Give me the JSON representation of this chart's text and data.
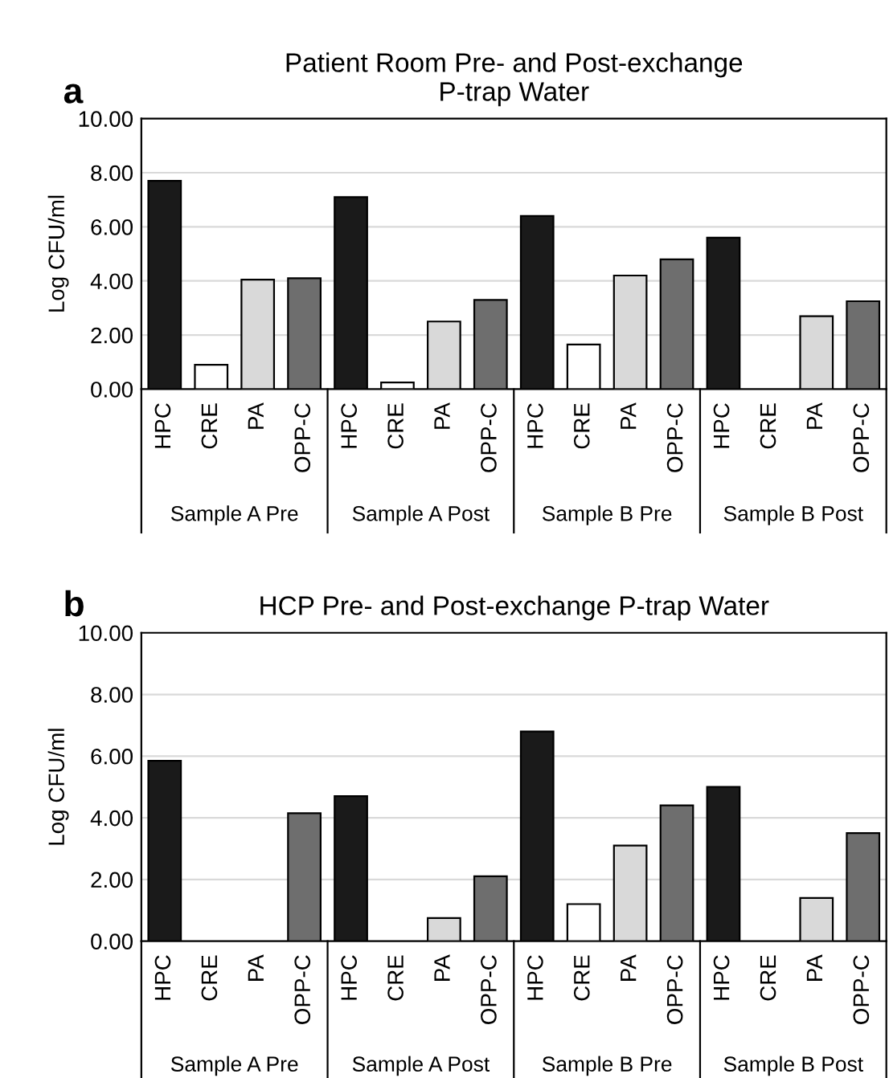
{
  "chart_data": [
    {
      "type": "bar",
      "title": "Patient Room Pre- and Post-exchange\nP-trap Water",
      "ylabel": "Log CFU/ml",
      "annotations": [
        "a",
        "Sample A Pre",
        "Sample A Post",
        "Sample B Pre",
        "Sample B Post"
      ],
      "categories": [
        "HPC",
        "CRE",
        "PA",
        "OPP-C",
        "HPC",
        "CRE",
        "PA",
        "OPP-C",
        "HPC",
        "CRE",
        "PA",
        "OPP-C",
        "HPC",
        "CRE",
        "PA",
        "OPP-C"
      ],
      "values": [
        7.7,
        0.9,
        4.05,
        4.1,
        7.1,
        0.25,
        2.5,
        3.3,
        6.4,
        1.65,
        4.2,
        4.8,
        5.6,
        null,
        2.7,
        3.25
      ],
      "colors": [
        "#1a1a1a",
        "#ffffff",
        "#d9d9d9",
        "#6e6e6e",
        "#1a1a1a",
        "#ffffff",
        "#d9d9d9",
        "#6e6e6e",
        "#1a1a1a",
        "#ffffff",
        "#d9d9d9",
        "#6e6e6e",
        "#1a1a1a",
        "#ffffff",
        "#d9d9d9",
        "#6e6e6e"
      ],
      "ylim": [
        0,
        10
      ],
      "yticks": [
        {
          "value": 0,
          "label": "0.00"
        },
        {
          "value": 2,
          "label": "2.00"
        },
        {
          "value": 4,
          "label": "4.00"
        },
        {
          "value": 6,
          "label": "6.00"
        },
        {
          "value": 8,
          "label": "8.00"
        },
        {
          "value": 10,
          "label": "10.00"
        }
      ],
      "grid": "y"
    },
    {
      "type": "bar",
      "title": "HCP Pre- and Post-exchange P-trap Water",
      "ylabel": "Log CFU/ml",
      "annotations": [
        "b",
        "Sample A Pre",
        "Sample A Post",
        "Sample B Pre",
        "Sample B Post"
      ],
      "categories": [
        "HPC",
        "CRE",
        "PA",
        "OPP-C",
        "HPC",
        "CRE",
        "PA",
        "OPP-C",
        "HPC",
        "CRE",
        "PA",
        "OPP-C",
        "HPC",
        "CRE",
        "PA",
        "OPP-C"
      ],
      "values": [
        5.85,
        null,
        null,
        4.15,
        4.7,
        null,
        0.75,
        2.1,
        6.8,
        1.2,
        3.1,
        4.4,
        5.0,
        null,
        1.4,
        3.5
      ],
      "colors": [
        "#1a1a1a",
        "#ffffff",
        "#d9d9d9",
        "#6e6e6e",
        "#1a1a1a",
        "#ffffff",
        "#d9d9d9",
        "#6e6e6e",
        "#1a1a1a",
        "#ffffff",
        "#d9d9d9",
        "#6e6e6e",
        "#1a1a1a",
        "#ffffff",
        "#d9d9d9",
        "#6e6e6e"
      ],
      "ylim": [
        0,
        10
      ],
      "yticks": [
        {
          "value": 0,
          "label": "0.00"
        },
        {
          "value": 2,
          "label": "2.00"
        },
        {
          "value": 4,
          "label": "4.00"
        },
        {
          "value": 6,
          "label": "6.00"
        },
        {
          "value": 8,
          "label": "8.00"
        },
        {
          "value": 10,
          "label": "10.00"
        }
      ],
      "grid": "y"
    }
  ]
}
